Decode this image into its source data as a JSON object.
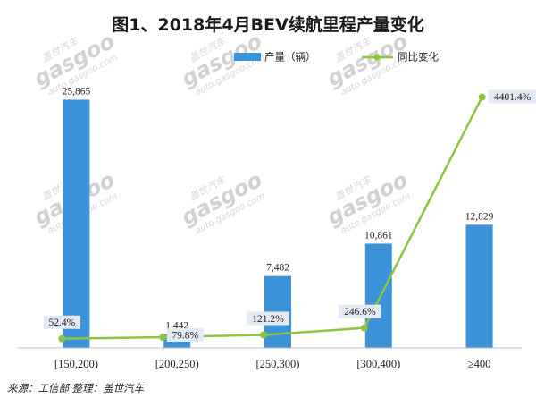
{
  "chart_data": {
    "type": "bar",
    "title": "图1、2018年4月BEV续航里程产量变化",
    "categories": [
      "[150,200)",
      "[200,250)",
      "[250,300)",
      "[300,400)",
      "≥400"
    ],
    "series": [
      {
        "name": "产量（辆）",
        "type": "bar",
        "axis": "left",
        "color": "#3d93d9",
        "values": [
          25865,
          1442,
          7482,
          10861,
          12829
        ],
        "labels": [
          "25,865",
          "1,442",
          "7,482",
          "10,861",
          "12,829"
        ]
      },
      {
        "name": "同比变化",
        "type": "line",
        "axis": "right",
        "color": "#8cc63f",
        "values": [
          52.4,
          79.8,
          121.2,
          246.6,
          4401.4
        ],
        "labels": [
          "52.4%",
          "79.8%",
          "121.2%",
          "246.6%",
          "4401.4%"
        ]
      }
    ],
    "ylim": [
      0,
      26000
    ],
    "y2lim": [
      0,
      4700
    ],
    "grid": false,
    "legend": "top-right",
    "source": "来源：工信部 整理：盖世汽车"
  },
  "watermark": {
    "brand_cn": "盖世汽车",
    "brand_logo": "gasgoo",
    "url": "auto.gasgoo.com"
  }
}
